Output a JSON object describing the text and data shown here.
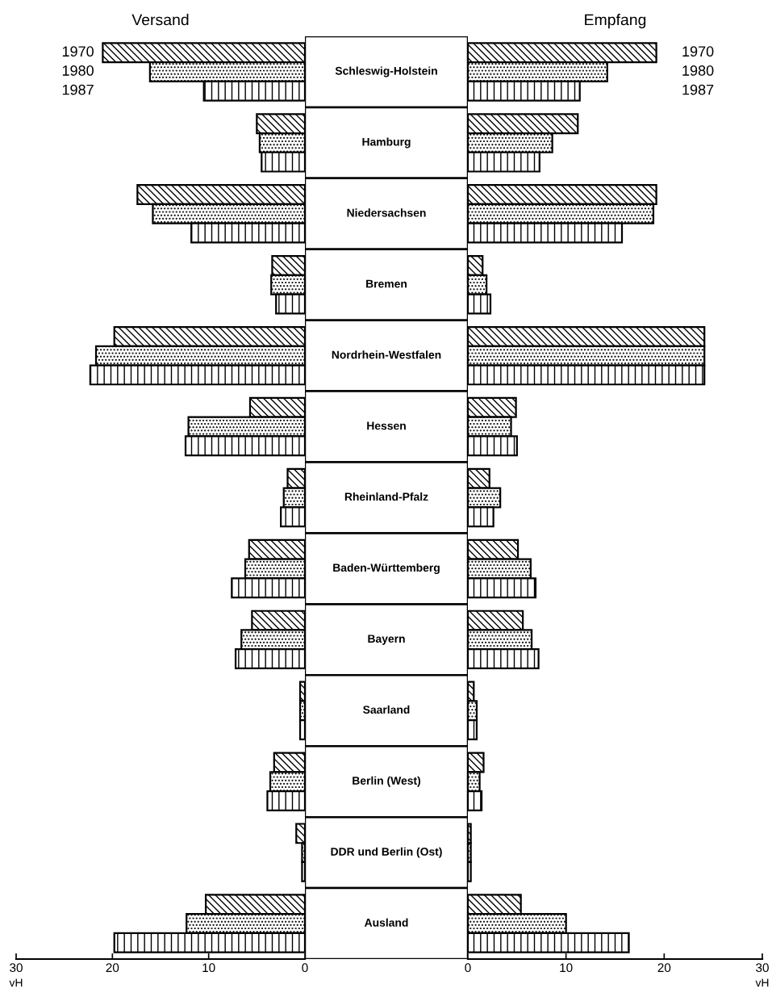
{
  "chart_data": [
    {
      "type": "bar",
      "orientation": "horizontal",
      "title": "Versand",
      "xlabel": "vH",
      "categories": [
        "Schleswig-Holstein",
        "Hamburg",
        "Niedersachsen",
        "Bremen",
        "Nordrhein-Westfalen",
        "Hessen",
        "Rheinland-Pfalz",
        "Baden-Württemberg",
        "Bayern",
        "Saarland",
        "Berlin (West)",
        "DDR und Berlin (Ost)",
        "Ausland"
      ],
      "series": [
        {
          "name": "1970",
          "color": "#000000",
          "values": [
            21.0,
            5.0,
            17.4,
            3.4,
            19.8,
            5.7,
            1.8,
            5.8,
            5.5,
            0.5,
            3.2,
            0.9,
            10.3
          ]
        },
        {
          "name": "1980",
          "color": "#000000",
          "values": [
            16.1,
            4.7,
            15.8,
            3.5,
            21.7,
            12.1,
            2.2,
            6.2,
            6.6,
            0.5,
            3.6,
            0.3,
            12.3
          ]
        },
        {
          "name": "1987",
          "color": "#000000",
          "values": [
            10.5,
            4.5,
            11.8,
            3.0,
            22.3,
            12.4,
            2.5,
            7.6,
            7.2,
            0.5,
            3.9,
            0.3,
            19.8
          ]
        }
      ],
      "xlim": [
        30,
        0
      ],
      "xticks": [
        30,
        20,
        10,
        0
      ],
      "grid": false
    },
    {
      "type": "bar",
      "orientation": "horizontal",
      "title": "Empfang",
      "xlabel": "vH",
      "categories": [
        null,
        null,
        null,
        null,
        null,
        null,
        null,
        null,
        null,
        null,
        null,
        null,
        null
      ],
      "series": [
        {
          "name": "1970",
          "color": "#000000",
          "values": [
            19.2,
            11.2,
            19.2,
            1.5,
            24.1,
            4.9,
            2.2,
            5.1,
            5.6,
            0.6,
            1.6,
            0.3,
            5.4
          ]
        },
        {
          "name": "1980",
          "color": "#000000",
          "values": [
            14.2,
            8.6,
            18.9,
            1.9,
            24.1,
            4.4,
            3.3,
            6.4,
            6.5,
            0.9,
            1.2,
            0.3,
            10.0
          ]
        },
        {
          "name": "1987",
          "color": "#000000",
          "values": [
            11.4,
            7.3,
            15.7,
            2.3,
            24.1,
            5.0,
            2.6,
            6.9,
            7.2,
            0.9,
            1.4,
            0.3,
            16.4
          ]
        }
      ],
      "xlim": [
        0,
        30
      ],
      "xticks": [
        0,
        10,
        20,
        30
      ],
      "grid": false
    }
  ]
}
